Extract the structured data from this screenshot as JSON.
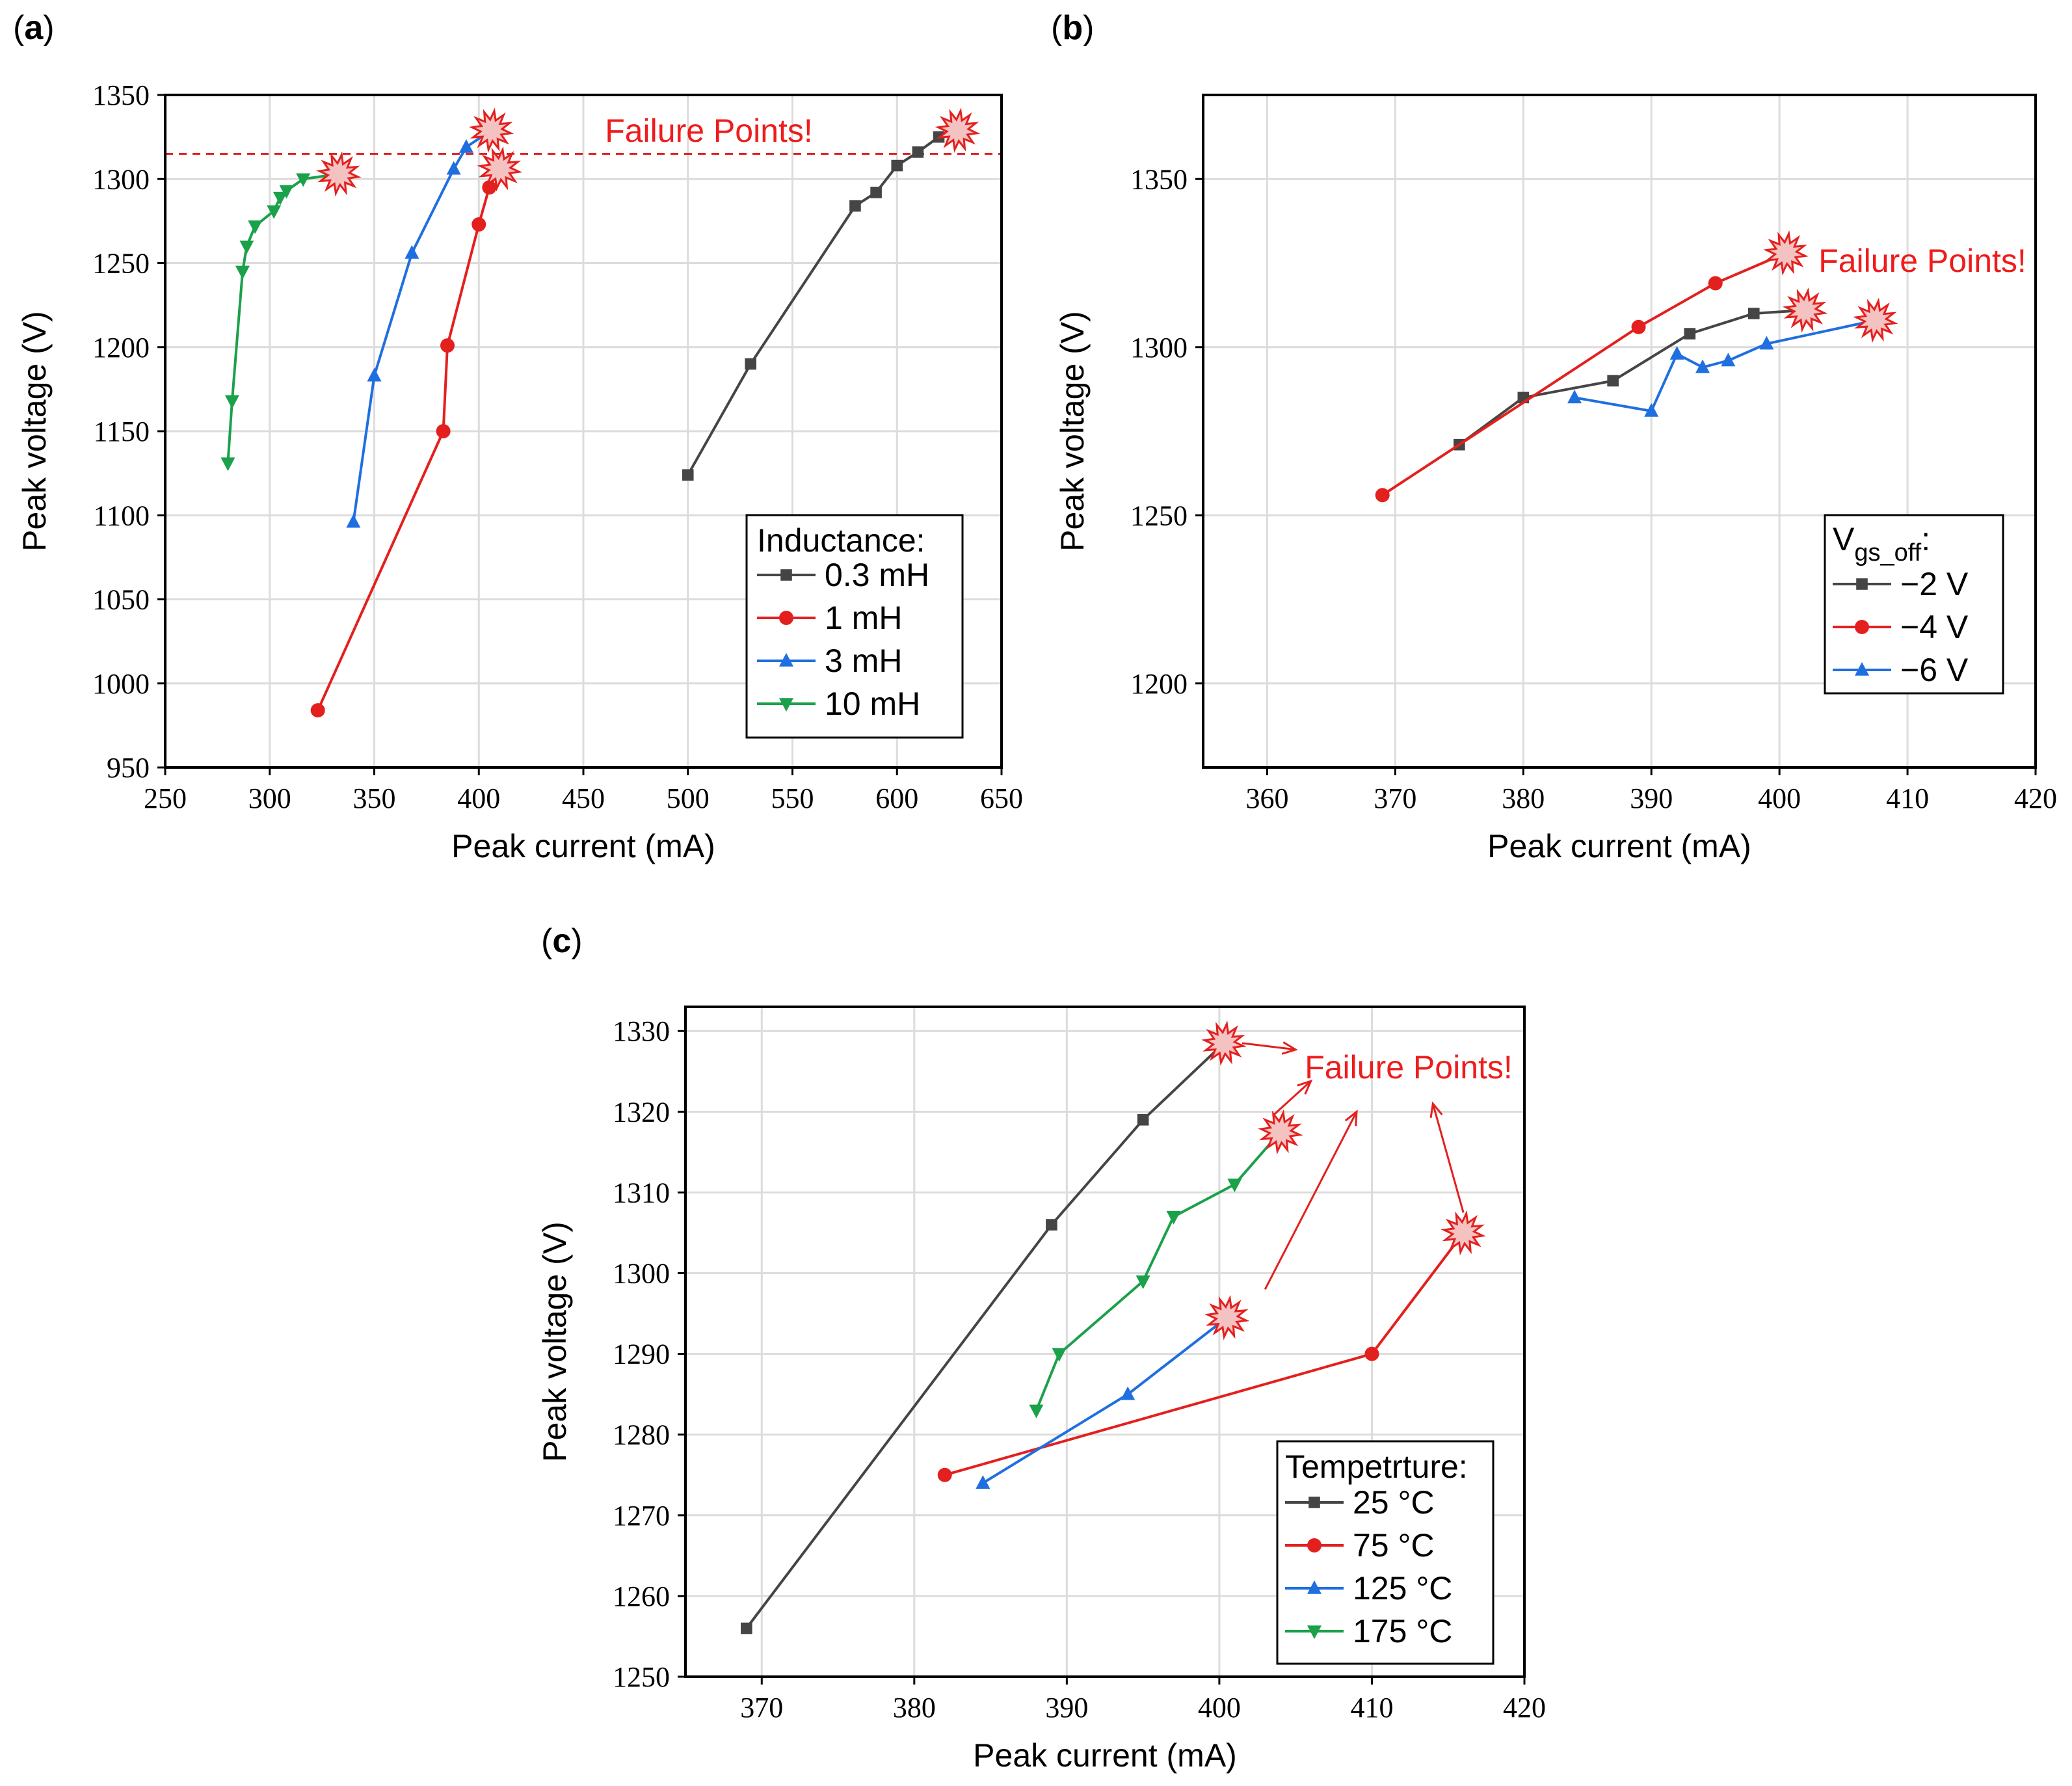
{
  "colors": {
    "black": "#454545",
    "red": "#e3201e",
    "blue": "#1f6fe0",
    "green": "#1aa14a",
    "fail_text": "#ee1c1c",
    "star_fill": "#f5c2c2",
    "star_stroke": "#e3201e"
  },
  "chart_data": [
    {
      "id": "a",
      "panel_label": "(a)",
      "type": "line",
      "xlabel": "Peak current (mA)",
      "ylabel": "Peak voltage (V)",
      "xlim": [
        250,
        650
      ],
      "ylim": [
        950,
        1350
      ],
      "xticks": [
        250,
        300,
        350,
        400,
        450,
        500,
        550,
        600,
        650
      ],
      "yticks": [
        950,
        1000,
        1050,
        1100,
        1150,
        1200,
        1250,
        1300,
        1350
      ],
      "grid": true,
      "legend_title": "Inductance:",
      "legend_position": "bottom-right",
      "annotation": "Failure Points!",
      "threshold_line": {
        "y": 1315,
        "style": "dashed",
        "color_key": "red"
      },
      "series": [
        {
          "name": "0.3 mH",
          "color_key": "black",
          "marker": "square",
          "x": [
            500,
            530,
            580,
            590,
            600,
            610,
            620
          ],
          "y": [
            1124,
            1190,
            1284,
            1292,
            1308,
            1316,
            1325
          ],
          "failure": [
            629,
            1329
          ]
        },
        {
          "name": "1 mH",
          "color_key": "red",
          "marker": "circle",
          "x": [
            323,
            383,
            385,
            400,
            405
          ],
          "y": [
            984,
            1150,
            1201,
            1273,
            1295
          ],
          "failure": [
            410,
            1306
          ]
        },
        {
          "name": "3 mH",
          "color_key": "blue",
          "marker": "triangle-up",
          "x": [
            340,
            350,
            368,
            388,
            394
          ],
          "y": [
            1096,
            1183,
            1256,
            1306,
            1319
          ],
          "failure": [
            406,
            1329
          ]
        },
        {
          "name": "10 mH",
          "color_key": "green",
          "marker": "triangle-down",
          "x": [
            280,
            282,
            287,
            289,
            293,
            302,
            305,
            308,
            316
          ],
          "y": [
            1131,
            1168,
            1245,
            1260,
            1272,
            1281,
            1289,
            1293,
            1300
          ],
          "failure": [
            333,
            1303
          ]
        }
      ]
    },
    {
      "id": "b",
      "panel_label": "(b)",
      "type": "line",
      "xlabel": "Peak current (mA)",
      "ylabel": "Peak voltage (V)",
      "xlim": [
        355,
        420
      ],
      "ylim": [
        1175,
        1375
      ],
      "xticks": [
        360,
        370,
        380,
        390,
        400,
        410,
        420
      ],
      "yticks": [
        1200,
        1250,
        1300,
        1350
      ],
      "grid": true,
      "legend_title": "Vgs_off:",
      "legend_title_main": "V",
      "legend_title_sub": "gs_off",
      "legend_title_suffix": ":",
      "legend_position": "bottom-right",
      "annotation": "Failure Points!",
      "series": [
        {
          "name": "−2 V",
          "color_key": "black",
          "marker": "square",
          "x": [
            375,
            380,
            387,
            393,
            398
          ],
          "y": [
            1271,
            1285,
            1290,
            1304,
            1310
          ],
          "failure": [
            402,
            1311
          ]
        },
        {
          "name": "−4 V",
          "color_key": "red",
          "marker": "circle",
          "x": [
            369,
            389,
            395
          ],
          "y": [
            1256,
            1306,
            1319
          ],
          "failure": [
            400.5,
            1328
          ]
        },
        {
          "name": "−6 V",
          "color_key": "blue",
          "marker": "triangle-up",
          "x": [
            384,
            390,
            392,
            394,
            396,
            399
          ],
          "y": [
            1285,
            1281,
            1298,
            1294,
            1296,
            1301
          ],
          "failure": [
            407.5,
            1308
          ]
        }
      ]
    },
    {
      "id": "c",
      "panel_label": "(c)",
      "type": "line",
      "xlabel": "Peak current (mA)",
      "ylabel": "Peak voltage (V)",
      "xlim": [
        365,
        420
      ],
      "ylim": [
        1250,
        1333
      ],
      "xticks": [
        370,
        380,
        390,
        400,
        410,
        420
      ],
      "yticks": [
        1250,
        1260,
        1270,
        1280,
        1290,
        1300,
        1310,
        1320,
        1330
      ],
      "grid": true,
      "legend_title": "Tempetrture:",
      "legend_position": "bottom-right",
      "annotation": "Failure Points!",
      "series": [
        {
          "name": "25 °C",
          "color_key": "black",
          "marker": "square",
          "x": [
            369,
            389,
            395
          ],
          "y": [
            1256,
            1306,
            1319
          ],
          "failure": [
            400.3,
            1328.5
          ]
        },
        {
          "name": "75 °C",
          "color_key": "red",
          "marker": "circle",
          "x": [
            382,
            410
          ],
          "y": [
            1275,
            1290
          ],
          "failure": [
            416,
            1305
          ]
        },
        {
          "name": "125 °C",
          "color_key": "blue",
          "marker": "triangle-up",
          "x": [
            384.5,
            394
          ],
          "y": [
            1274,
            1285
          ],
          "failure": [
            400.5,
            1294.5
          ]
        },
        {
          "name": "175 °C",
          "color_key": "green",
          "marker": "triangle-down",
          "x": [
            388,
            389.5,
            395,
            397,
            401
          ],
          "y": [
            1283,
            1290,
            1299,
            1307,
            1311
          ],
          "failure": [
            404,
            1317.5
          ]
        }
      ],
      "arrows": [
        {
          "from": [
            401.5,
            1328.5
          ],
          "to": [
            405,
            1327.7
          ]
        },
        {
          "from": [
            403.5,
            1319.5
          ],
          "to": [
            406,
            1323.8
          ]
        },
        {
          "from": [
            403,
            1298
          ],
          "to": [
            409,
            1320
          ]
        },
        {
          "from": [
            416,
            1307.5
          ],
          "to": [
            414,
            1321
          ]
        }
      ]
    }
  ]
}
